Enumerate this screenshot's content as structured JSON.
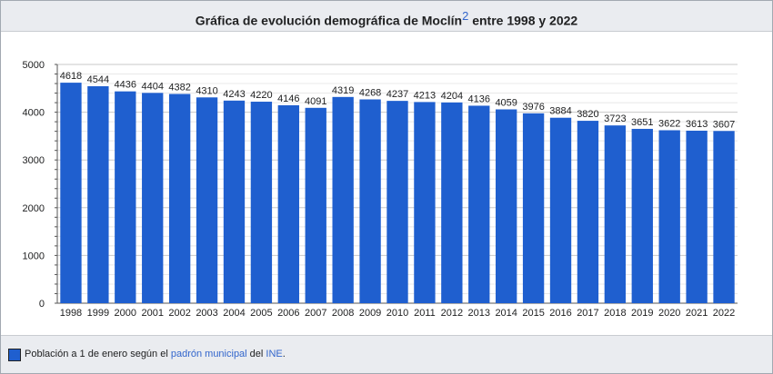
{
  "title": {
    "text": "Gráfica de evolución demográfica de Moclín",
    "ref": "2",
    "suffix": " entre 1998 y 2022"
  },
  "legend": {
    "prefix": "Población a 1 de enero según el ",
    "link1": "padrón municipal",
    "middle": " del ",
    "link2": "INE",
    "end": "."
  },
  "colors": {
    "bar": "#1f5fcf",
    "link": "#3366cc"
  },
  "chart_data": {
    "type": "bar",
    "categories": [
      "1998",
      "1999",
      "2000",
      "2001",
      "2002",
      "2003",
      "2004",
      "2005",
      "2006",
      "2007",
      "2008",
      "2009",
      "2010",
      "2011",
      "2012",
      "2013",
      "2014",
      "2015",
      "2016",
      "2017",
      "2018",
      "2019",
      "2020",
      "2021",
      "2022"
    ],
    "values": [
      4618,
      4544,
      4436,
      4404,
      4382,
      4310,
      4243,
      4220,
      4146,
      4091,
      4319,
      4268,
      4237,
      4213,
      4204,
      4136,
      4059,
      3976,
      3884,
      3820,
      3723,
      3651,
      3622,
      3613,
      3607
    ],
    "yticks": [
      0,
      1000,
      2000,
      3000,
      4000,
      5000
    ],
    "ylim": [
      0,
      5000
    ],
    "grid": true,
    "data_labels": true,
    "legend_position": "bottom"
  }
}
